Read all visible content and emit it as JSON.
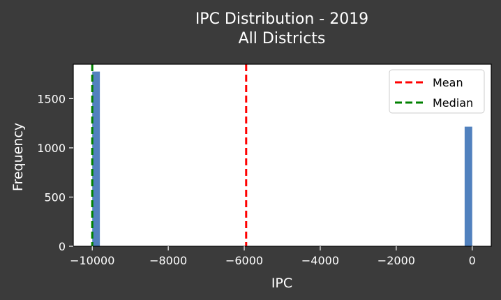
{
  "chart_data": {
    "type": "bar",
    "title": "IPC Distribution - 2019",
    "subtitle": "All Districts",
    "xlabel": "IPC",
    "ylabel": "Frequency",
    "xlim": [
      -10500,
      500
    ],
    "ylim": [
      0,
      1850
    ],
    "x_ticks": [
      -10000,
      -8000,
      -6000,
      -4000,
      -2000,
      0
    ],
    "x_tick_labels": [
      "−10000",
      "−8000",
      "−6000",
      "−4000",
      "−2000",
      "0"
    ],
    "y_ticks": [
      0,
      500,
      1000,
      1500
    ],
    "y_tick_labels": [
      "0",
      "500",
      "1000",
      "1500"
    ],
    "grid": false,
    "bin_width": 200,
    "bars": [
      {
        "x_start": -10000,
        "x_end": -9800,
        "value": 1775
      },
      {
        "x_start": -200,
        "x_end": 0,
        "value": 1215
      }
    ],
    "bar_color": "#5181be",
    "reference_lines": [
      {
        "name": "Mean",
        "x": -5950,
        "color": "#ff0000",
        "style": "dashed"
      },
      {
        "name": "Median",
        "x": -10000,
        "color": "#008000",
        "style": "dashed"
      }
    ],
    "legend": {
      "position": "top-right",
      "entries": [
        "Mean",
        "Median"
      ]
    }
  }
}
